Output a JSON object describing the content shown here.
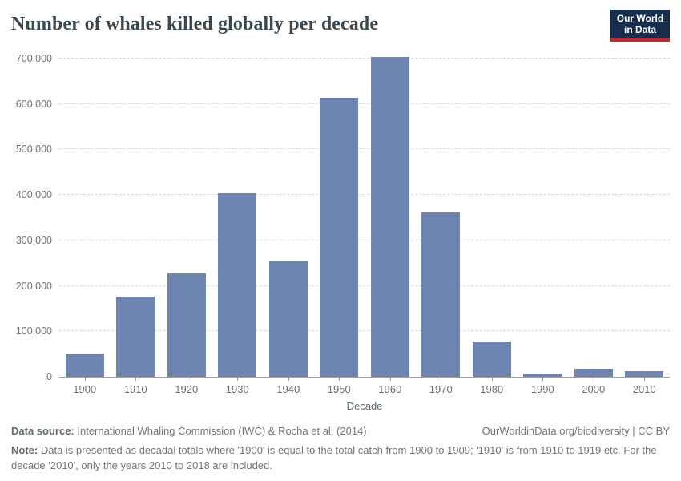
{
  "header": {
    "title": "Number of whales killed globally per decade",
    "logo_line1": "Our World",
    "logo_line2": "in Data"
  },
  "chart_data": {
    "type": "bar",
    "title": "Number of whales killed globally per decade",
    "xlabel": "Decade",
    "ylabel": "",
    "categories": [
      "1900",
      "1910",
      "1920",
      "1930",
      "1940",
      "1950",
      "1960",
      "1970",
      "1980",
      "1990",
      "2000",
      "2010"
    ],
    "values": [
      52000,
      176000,
      228000,
      403000,
      256000,
      613000,
      703000,
      362000,
      77000,
      7000,
      17000,
      13000
    ],
    "ylim": [
      0,
      700000
    ],
    "yticks": [
      {
        "value": 0,
        "label": "0"
      },
      {
        "value": 100000,
        "label": "100,000"
      },
      {
        "value": 200000,
        "label": "200,000"
      },
      {
        "value": 300000,
        "label": "300,000"
      },
      {
        "value": 400000,
        "label": "400,000"
      },
      {
        "value": 500000,
        "label": "500,000"
      },
      {
        "value": 600000,
        "label": "600,000"
      },
      {
        "value": 700000,
        "label": "700,000"
      }
    ],
    "grid": "horizontal-dashed",
    "legend": "none",
    "bar_color": "#6e85b2"
  },
  "colors": {
    "bar": "#6e85b2",
    "logo_navy": "#152e4d",
    "logo_red": "#c5272d",
    "title_text": "#3c4850",
    "axis_text": "#717171",
    "footer_text": "#757575"
  },
  "footer": {
    "datasource_label": "Data source:",
    "datasource_text": "International Whaling Commission (IWC) & Rocha et al. (2014)",
    "attribution": "OurWorldinData.org/biodiversity | CC BY",
    "note_label": "Note:",
    "note_text": "Data is presented as decadal totals where '1900' is equal to the total catch from 1900 to 1909; '1910' is from 1910 to 1919 etc. For the decade '2010', only the years 2010 to 2018 are included."
  }
}
